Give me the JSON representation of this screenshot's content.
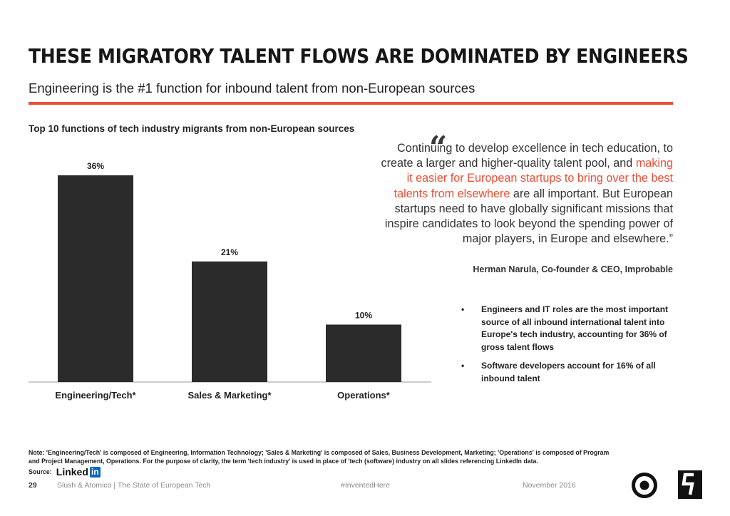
{
  "slide": {
    "title": "THESE MIGRATORY TALENT FLOWS ARE DOMINATED BY ENGINEERS",
    "subtitle": "Engineering is the #1 function for inbound talent from non-European sources",
    "accent_color": "#ec4f37"
  },
  "chart_data": {
    "type": "bar",
    "title": "Top 10 functions of tech industry migrants from non-European sources",
    "categories": [
      "Engineering/Tech*",
      "Sales & Marketing*",
      "Operations*"
    ],
    "values": [
      36,
      21,
      10
    ],
    "value_labels": [
      "36%",
      "21%",
      "10%"
    ],
    "unit": "%",
    "ylim": [
      0,
      36
    ],
    "bar_color": "#2b2b2b",
    "grid": false,
    "xlabel": "",
    "ylabel": ""
  },
  "quote": {
    "part1": "Continuing to develop excellence in tech education, to create a larger and higher-quality talent pool, and ",
    "highlight": "making it easier for European startups to bring over the best talents from elsewhere",
    "part2": " are all important. But European startups need to have globally significant missions that inspire candidates to look beyond the spending power of major players, in Europe and elsewhere.”",
    "author": "Herman Narula, Co-founder & CEO, Improbable"
  },
  "bullets": [
    "Engineers and IT roles are the most important source of all inbound international talent into Europe's tech industry, accounting for 36% of gross talent flows",
    "Software developers account for 16% of all inbound talent"
  ],
  "note": "Note: 'Engineering/Tech' is composed of Engineering, Information Technology; 'Sales & Marketing' is composed of Sales, Business Development, Marketing; 'Operations' is composed of Program and Project Management, Operations. For the purpose of clarity, the term 'tech industry' is used in place of 'tech (software) industry on all slides referencing LinkedIn data.",
  "source": {
    "label": "Source:",
    "logo_text": "Linked",
    "logo_badge": "in"
  },
  "footer": {
    "page_number": "29",
    "source_text": "Slush & Atomico  |  The State of European Tech",
    "hashtag": "#InventedHere",
    "date": "November 2016"
  }
}
